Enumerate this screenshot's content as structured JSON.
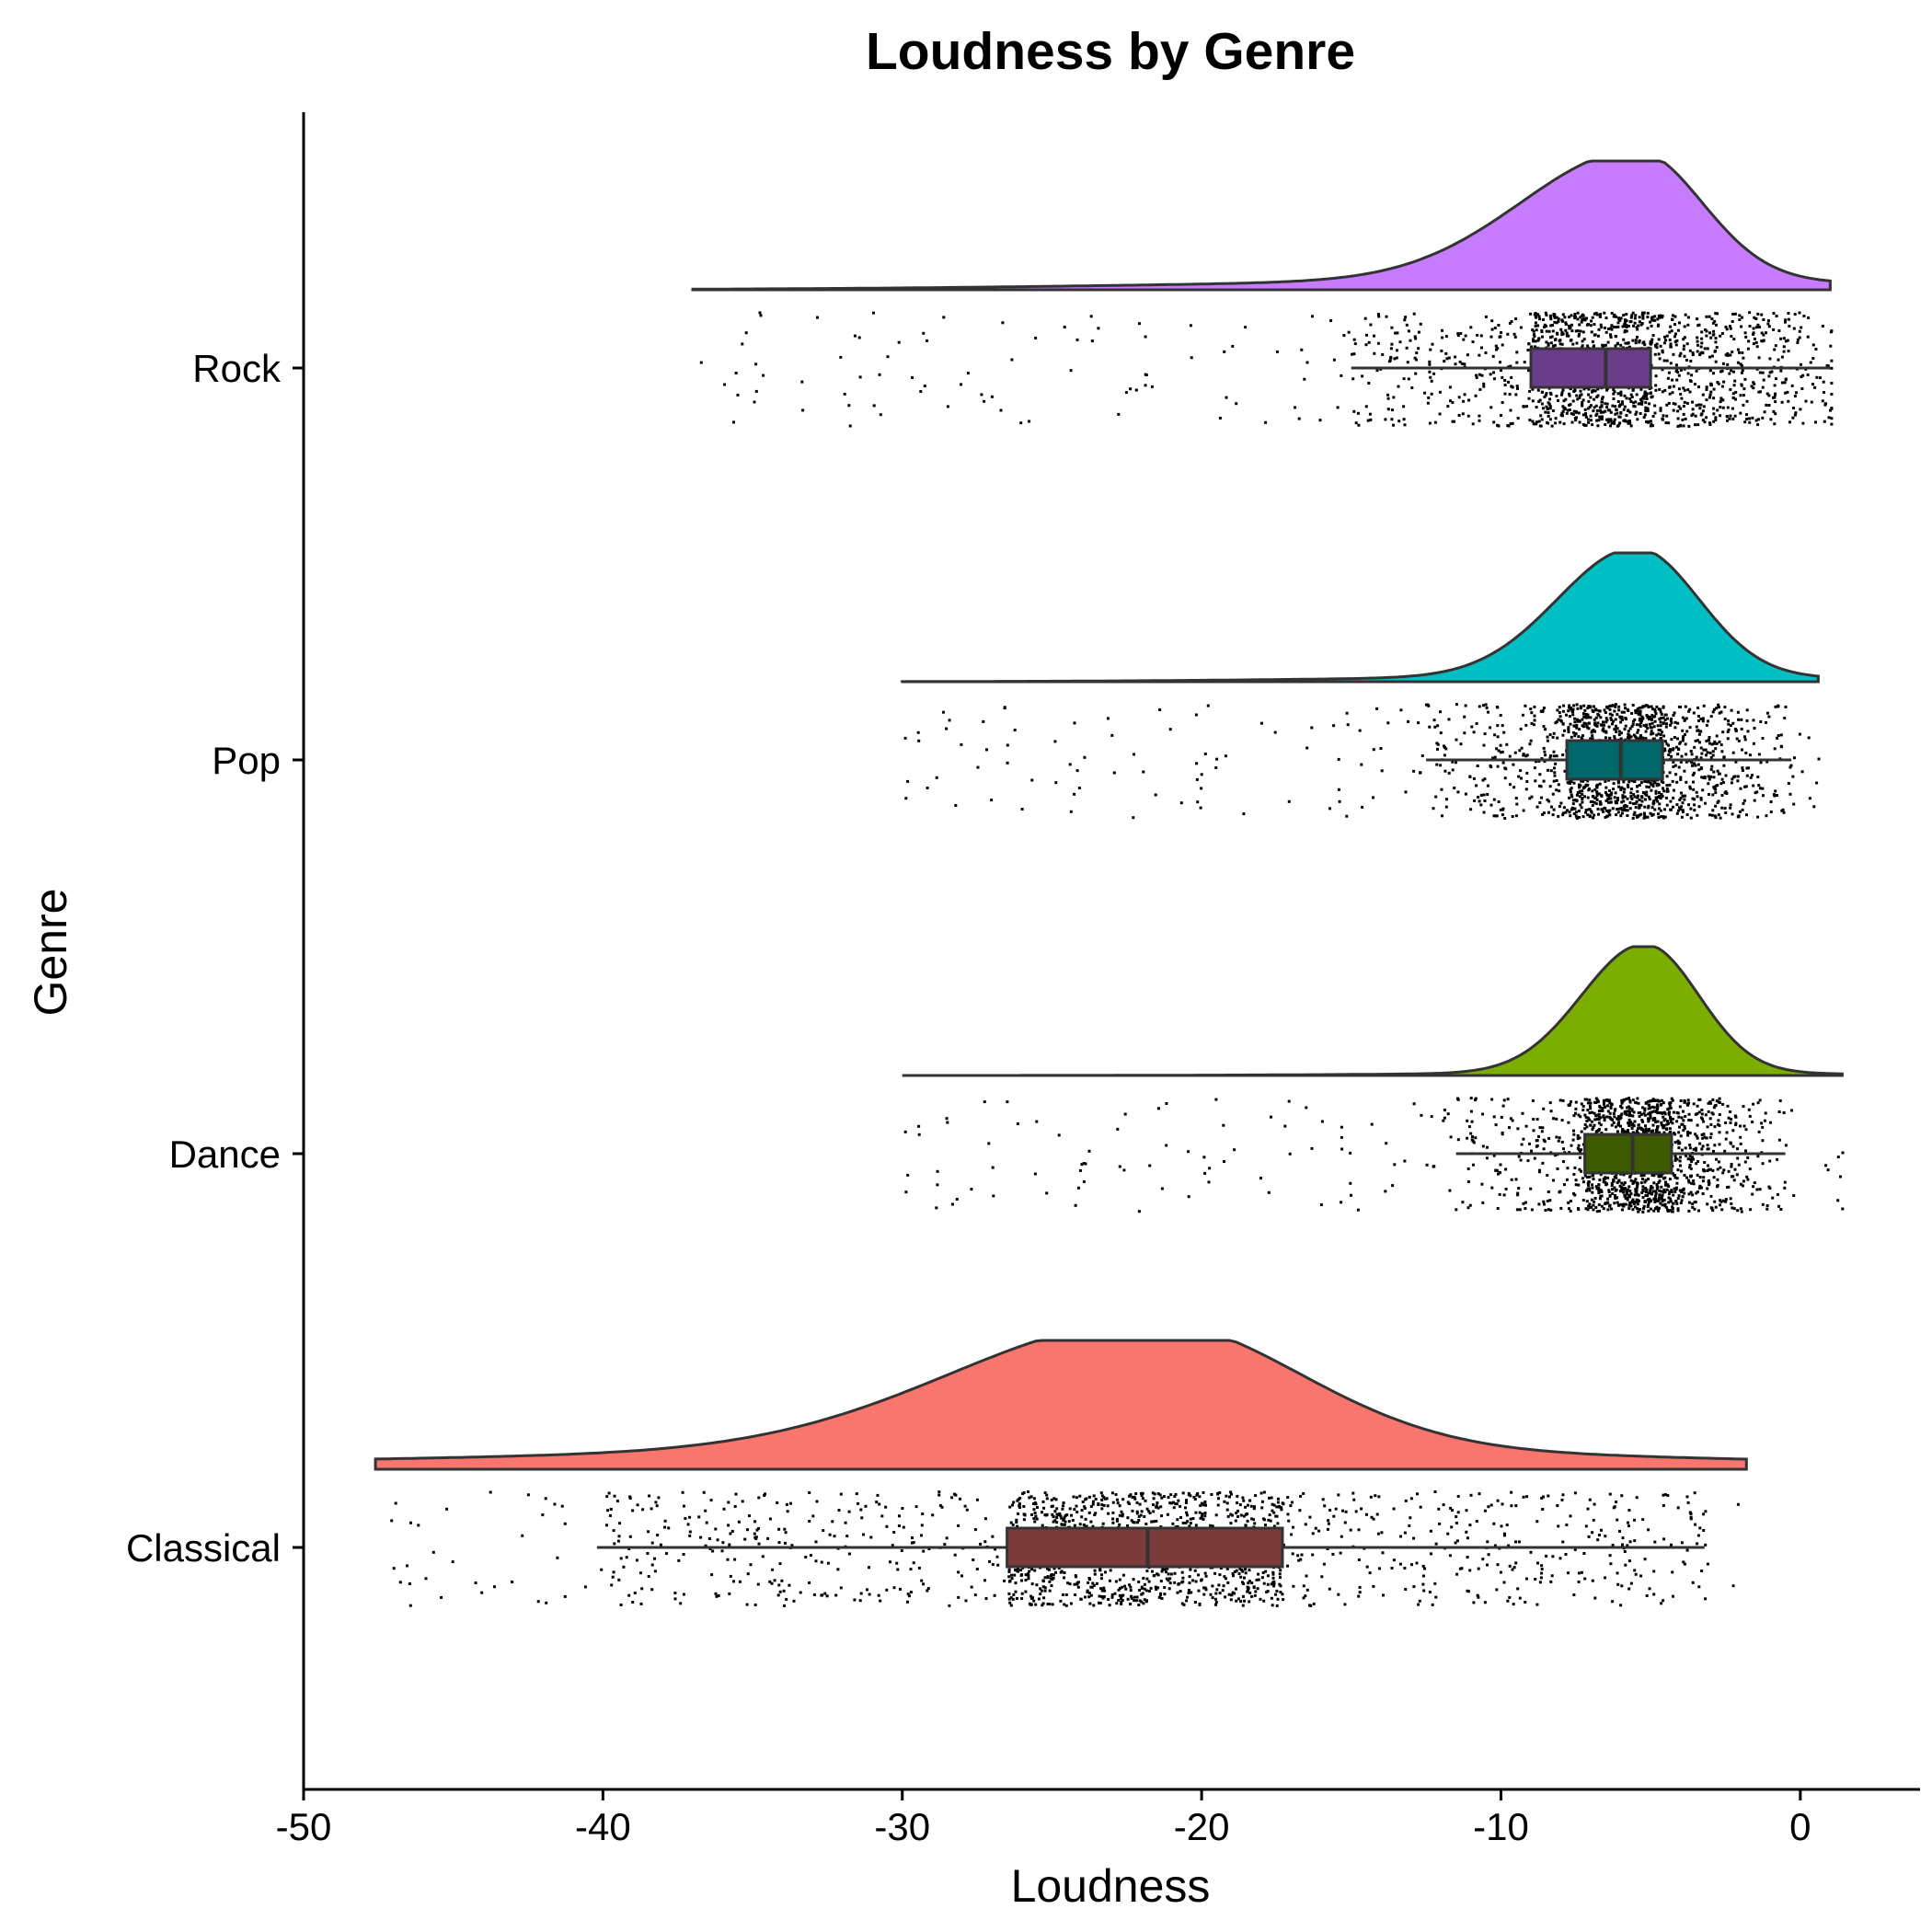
{
  "chart_data": {
    "type": "raincloud",
    "title": "Loudness by Genre",
    "xlabel": "Loudness",
    "ylabel": "Genre",
    "xlim": [
      -50,
      4
    ],
    "x_ticks": [
      -50,
      -40,
      -30,
      -20,
      -10,
      0
    ],
    "x_tick_labels": [
      "-50",
      "-40",
      "-30",
      "-20",
      "-10",
      "0"
    ],
    "categories": [
      "Rock",
      "Pop",
      "Dance",
      "Classical"
    ],
    "grid": false,
    "legend": "none",
    "series": [
      {
        "category": "Rock",
        "color": "#C77CFF",
        "box_color": "#6A3D8B",
        "min": -37,
        "max": 1,
        "box": {
          "whisker_low": -15,
          "q1": -9,
          "median": -6.5,
          "q3": -5,
          "whisker_high": 1
        },
        "density": {
          "peak": -5.5,
          "spread_left": 3.8,
          "spread_right": 2.2,
          "tail_weight": 0.08
        }
      },
      {
        "category": "Pop",
        "color": "#00BFC4",
        "box_color": "#00686B",
        "min": -30,
        "max": 0.6,
        "box": {
          "whisker_low": -12.5,
          "q1": -7.8,
          "median": -6,
          "q3": -4.6,
          "whisker_high": -0.3
        },
        "density": {
          "peak": -5.5,
          "spread_left": 2.6,
          "spread_right": 2.1,
          "tail_weight": 0.04
        }
      },
      {
        "category": "Dance",
        "color": "#7CAE00",
        "box_color": "#3D5A00",
        "min": -30,
        "max": 1.4,
        "box": {
          "whisker_low": -11.5,
          "q1": -7.2,
          "median": -5.6,
          "q3": -4.3,
          "whisker_high": -0.5
        },
        "density": {
          "peak": -5.2,
          "spread_left": 2.1,
          "spread_right": 1.8,
          "tail_weight": 0.02
        }
      },
      {
        "category": "Classical",
        "color": "#F8766D",
        "box_color": "#7B3B3B",
        "min": -47.6,
        "max": -1.8,
        "box": {
          "whisker_low": -40.2,
          "q1": -26.5,
          "median": -21.8,
          "q3": -17.3,
          "whisker_high": -3.2
        },
        "density": {
          "peak": -21.8,
          "spread_left": 6.5,
          "spread_right": 5.0,
          "tail_weight": 0.15
        }
      }
    ]
  }
}
